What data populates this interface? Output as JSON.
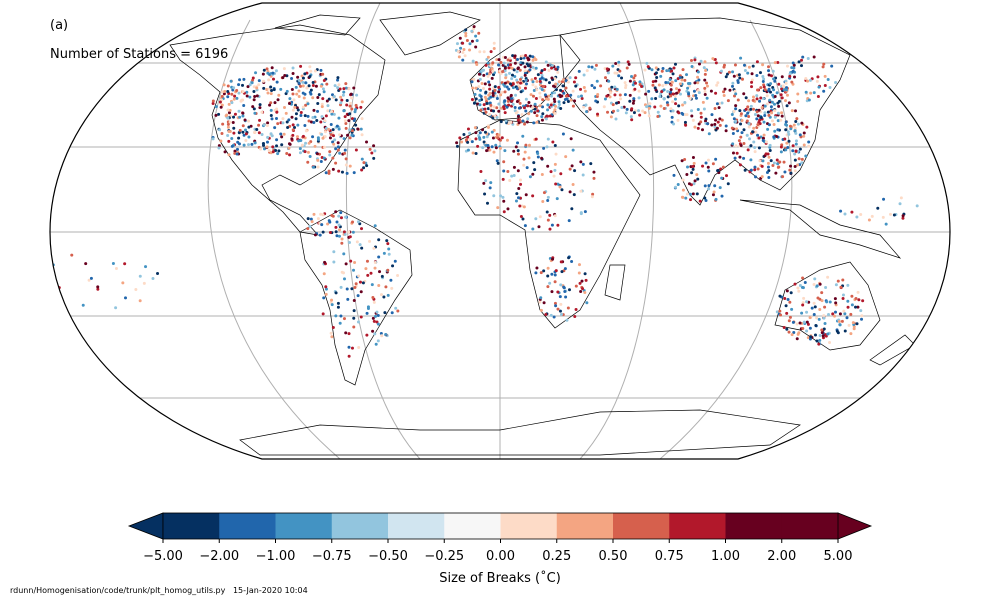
{
  "panel_label": "(a)",
  "station_count_text": "Number of Stations = 6196",
  "footer": "rdunn/Homogenisation/code/trunk/plt_homog_utils.py   15-Jan-2020 10:04",
  "colorbar": {
    "title": "Size of Breaks (˚C)",
    "tick_labels": [
      "−5.00",
      "−2.00",
      "−1.00",
      "−0.75",
      "−0.50",
      "−0.25",
      "0.00",
      "0.25",
      "0.50",
      "0.75",
      "1.00",
      "2.00",
      "5.00"
    ],
    "colors": [
      "#053061",
      "#2166ac",
      "#4393c3",
      "#92c5de",
      "#d1e5f0",
      "#f7f7f7",
      "#fddbc7",
      "#f4a582",
      "#d6604d",
      "#b2182b",
      "#67001f",
      "#67001f"
    ],
    "under_color": "#053061",
    "over_color": "#67001f"
  },
  "map": {
    "projection": "Robinson",
    "gridlines": true,
    "station_marker_colors": [
      "#053061",
      "#2166ac",
      "#4393c3",
      "#92c5de",
      "#fddbc7",
      "#f4a582",
      "#d6604d",
      "#b2182b",
      "#67001f"
    ]
  }
}
